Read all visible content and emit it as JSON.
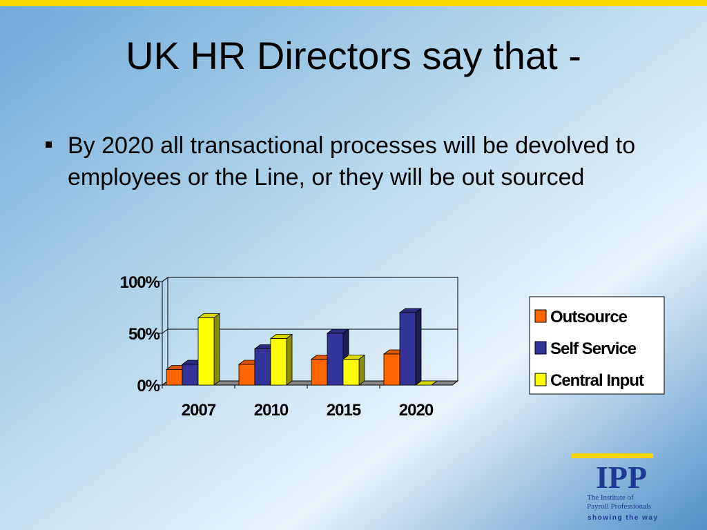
{
  "slide": {
    "title": "UK HR Directors say that -",
    "bullet": "By 2020 all transactional processes will be devolved to employees or the Line, or they will be out sourced"
  },
  "chart_data": {
    "type": "bar3d",
    "categories": [
      "2007",
      "2010",
      "2015",
      "2020"
    ],
    "series": [
      {
        "name": "Outsource",
        "color": "#ff6600",
        "values": [
          15,
          20,
          25,
          30
        ]
      },
      {
        "name": "Self Service",
        "color": "#333399",
        "values": [
          20,
          35,
          50,
          70
        ]
      },
      {
        "name": "Central Input",
        "color": "#ffff00",
        "values": [
          65,
          45,
          25,
          0
        ]
      }
    ],
    "ylim": [
      0,
      100
    ],
    "yticks": [
      {
        "value": 0,
        "label": "0%"
      },
      {
        "value": 50,
        "label": "50%"
      },
      {
        "value": 100,
        "label": "100%"
      }
    ],
    "grid": true,
    "legend": "right"
  },
  "logo": {
    "name": "IPP",
    "line1": "The Institute of",
    "line2": "Payroll Professionals",
    "tagline": "showing the way"
  }
}
